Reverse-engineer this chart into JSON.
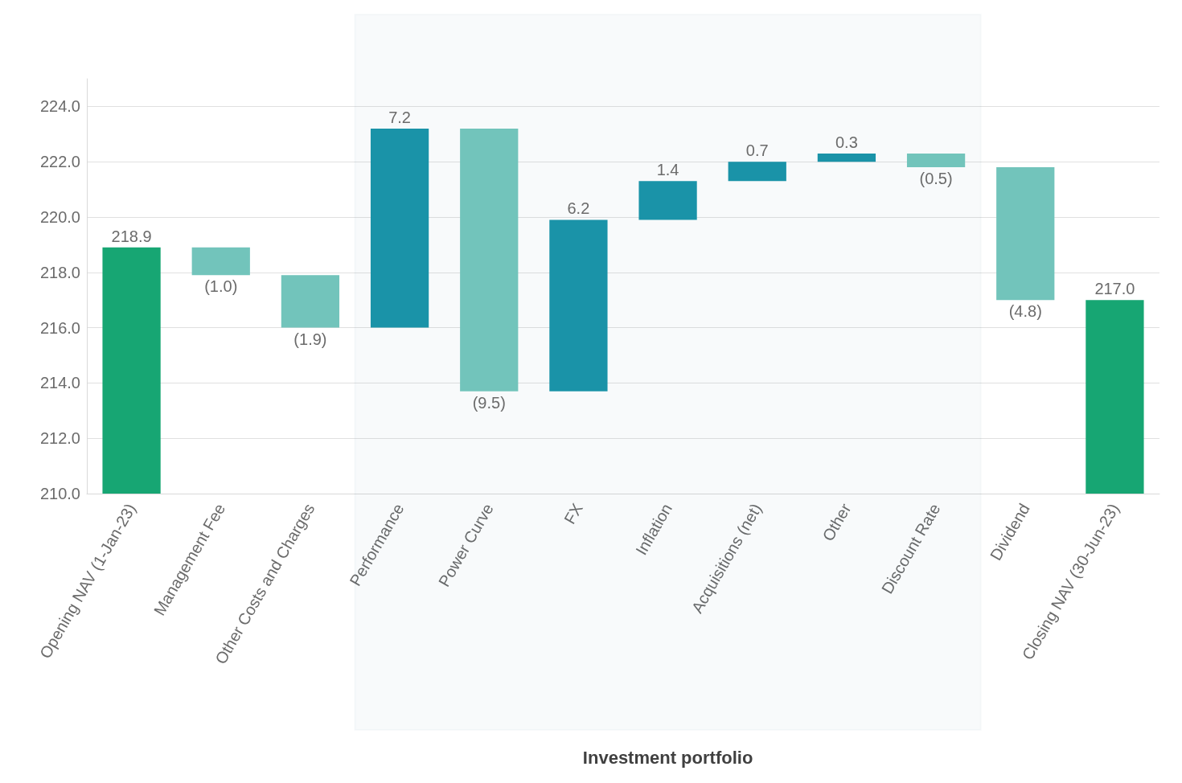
{
  "chart_data": {
    "type": "bar",
    "categories": [
      "Opening NAV (1-Jan-23)",
      "Management Fee",
      "Other Costs and Charges",
      "Performance",
      "Power Curve",
      "FX",
      "Inflation",
      "Acquisitions (net)",
      "Other",
      "Discount Rate",
      "Dividend",
      "Closing NAV (30-Jun-23)"
    ],
    "base": [
      210,
      218.9,
      217.9,
      216.0,
      223.2,
      213.7,
      219.9,
      221.3,
      222.0,
      222.3,
      221.8,
      210
    ],
    "values": [
      8.9,
      -1.0,
      -1.9,
      7.2,
      -9.5,
      6.2,
      1.4,
      0.7,
      0.3,
      -0.5,
      -4.8,
      7.0
    ],
    "value_labels": [
      "218.9",
      "(1.0)",
      "(1.9)",
      "7.2",
      "(9.5)",
      "6.2",
      "1.4",
      "0.7",
      "0.3",
      "(0.5)",
      "(4.8)",
      "217.0"
    ],
    "colors": [
      "#17a673",
      "#72c4bb",
      "#72c4bb",
      "#1a93a8",
      "#72c4bb",
      "#1a93a8",
      "#1a93a8",
      "#1a93a8",
      "#1a93a8",
      "#72c4bb",
      "#72c4bb",
      "#17a673"
    ],
    "ylim": [
      210,
      225
    ],
    "yticks": [
      {
        "value": 210,
        "label": "210.0"
      },
      {
        "value": 212,
        "label": "212.0"
      },
      {
        "value": 214,
        "label": "214.0"
      },
      {
        "value": 216,
        "label": "216.0"
      },
      {
        "value": 218,
        "label": "218.0"
      },
      {
        "value": 220,
        "label": "220.0"
      },
      {
        "value": 222,
        "label": "222.0"
      },
      {
        "value": 224,
        "label": "224.0"
      }
    ],
    "grid": "y",
    "bands": [
      {
        "axis": "x",
        "from": "Performance",
        "to": "Discount Rate",
        "label": "Investment portfolio",
        "color": "#1a5f73"
      }
    ]
  }
}
